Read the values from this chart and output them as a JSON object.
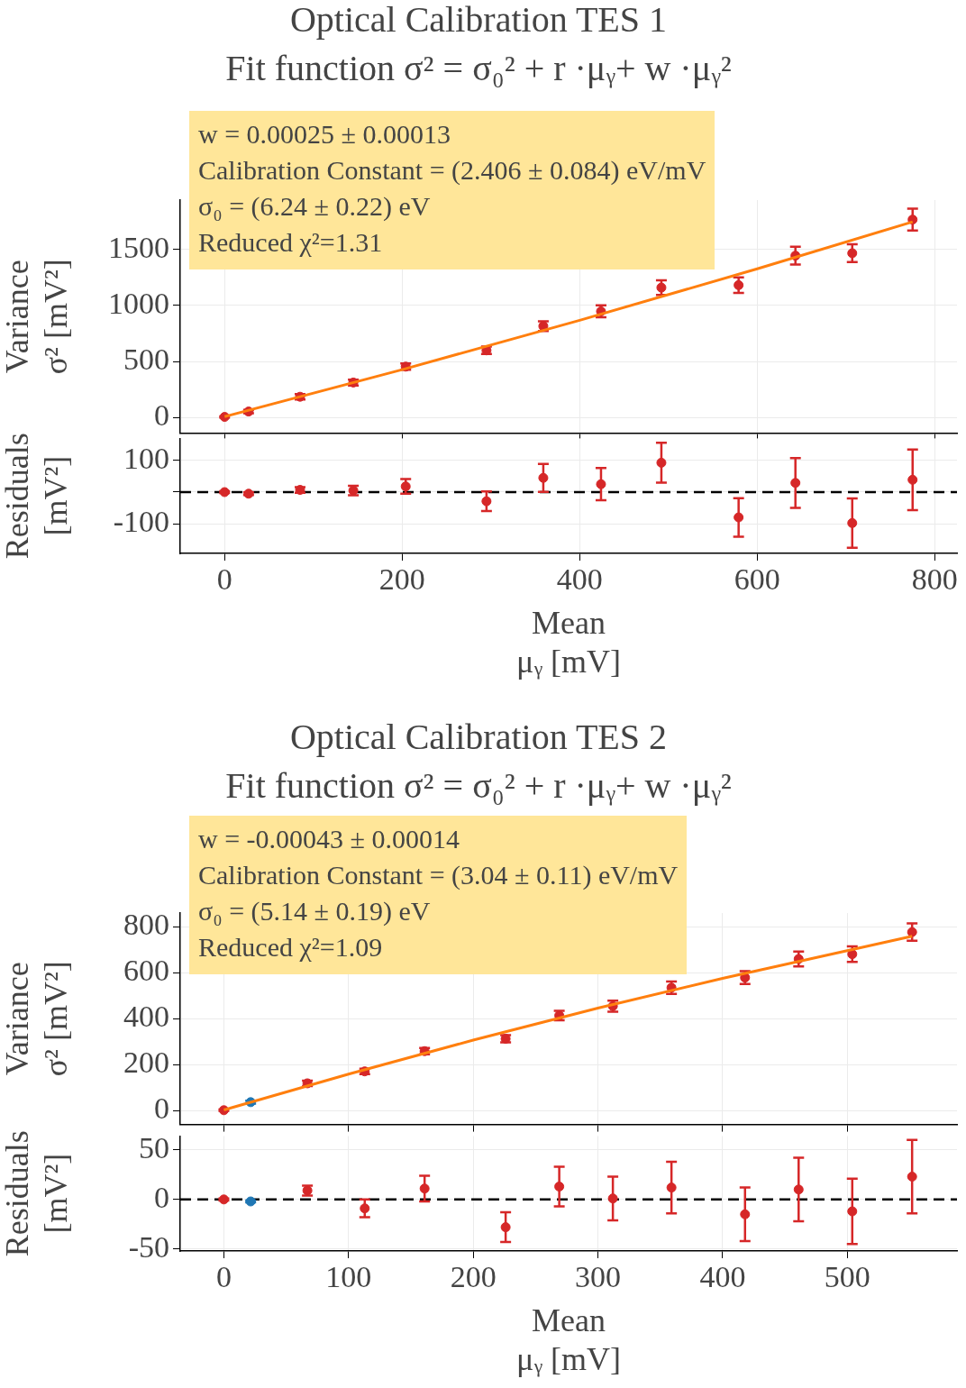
{
  "chart_data": [
    {
      "type": "scatter",
      "title": "Optical Calibration TES 1",
      "subtitle": "Fit function σ² = σ₀² + r ·μᵧ+ w ·μᵧ²",
      "ylabel": "Variance\nσ² [mV²]",
      "annotations": [
        "w = 0.00025 ± 0.00013",
        "Calibration Constant = (2.406 ± 0.084) eV/mV",
        "σ₀ = (6.24 ± 0.22) eV",
        "Reduced χ²=1.31"
      ],
      "xlim": [
        -50,
        825
      ],
      "xticks": [
        0,
        200,
        400,
        600,
        800
      ],
      "ylim": [
        -140,
        1940
      ],
      "yticks": [
        0,
        500,
        1000,
        1500
      ],
      "grid": true,
      "tick_labels": "y",
      "marker": "circle",
      "series": [
        {
          "type": "scatter",
          "color": "#d62728",
          "x": [
            0,
            27,
            85,
            145,
            204,
            295,
            359,
            424,
            492,
            579,
            643,
            707,
            775
          ],
          "values": [
            5,
            53,
            185,
            312,
            454,
            599,
            815,
            947,
            1159,
            1181,
            1444,
            1466,
            1766
          ],
          "errors": [
            5,
            15,
            24,
            26,
            29,
            33,
            44,
            53,
            66,
            70,
            79,
            79,
            97
          ]
        },
        {
          "type": "line",
          "color": "#ff7f0e",
          "marker": "none",
          "x": [
            0,
            200,
            400,
            600,
            775
          ],
          "values": [
            7,
            427,
            867,
            1327,
            1746
          ]
        }
      ]
    },
    {
      "type": "scatter",
      "xlabel": "Mean\nμᵧ [mV]",
      "ylabel": "Residuals\n[mV²]",
      "xlim": [
        -50,
        825
      ],
      "xticks": [
        0,
        200,
        400,
        600,
        800
      ],
      "ylim": [
        -194,
        170
      ],
      "yticks": [
        -100,
        {
          "value": 0,
          "label": null
        },
        100
      ],
      "grid": true,
      "marker": "circle",
      "ref_lines": [
        {
          "axis": "y",
          "value": 0,
          "color": "#000000",
          "line_style": "dashed"
        }
      ],
      "series": [
        {
          "type": "scatter",
          "color": "#d62728",
          "x": [
            0,
            27,
            85,
            145,
            204,
            295,
            359,
            424,
            492,
            579,
            643,
            707,
            775
          ],
          "values": [
            0,
            -5,
            7,
            5,
            18,
            -29,
            45,
            25,
            93,
            -80,
            29,
            -98,
            39
          ],
          "errors": [
            3,
            4,
            9,
            15,
            23,
            31,
            44,
            51,
            63,
            61,
            79,
            78,
            96
          ]
        }
      ]
    },
    {
      "type": "scatter",
      "title": "Optical Calibration TES 2",
      "subtitle": "Fit function σ² = σ₀² + r ·μᵧ+ w ·μᵧ²",
      "ylabel": "Variance\nσ² [mV²]",
      "annotations": [
        "w = -0.00043 ± 0.00014",
        "Calibration Constant = (3.04 ± 0.11) eV/mV",
        "σ₀ = (5.14 ± 0.19) eV",
        "Reduced χ²=1.09"
      ],
      "xlim": [
        -35,
        588
      ],
      "xticks": [
        0,
        100,
        200,
        300,
        400,
        500
      ],
      "ylim": [
        -60,
        860
      ],
      "yticks": [
        0,
        200,
        400,
        600,
        800
      ],
      "grid": true,
      "tick_labels": "y",
      "marker": "circle",
      "series": [
        {
          "type": "scatter",
          "color": "#d62728",
          "x": [
            0,
            67,
            113,
            161,
            226,
            269,
            312,
            359,
            418,
            461,
            504,
            552
          ],
          "values": [
            2,
            119,
            171,
            259,
            313,
            414,
            455,
            535,
            579,
            660,
            681,
            777
          ],
          "errors": [
            3,
            12,
            12,
            14,
            16,
            21,
            24,
            27,
            28,
            32,
            34,
            38
          ]
        },
        {
          "type": "scatter",
          "color": "#1f77b4",
          "x": [
            21.5
          ],
          "values": [
            37
          ],
          "errors": [
            6
          ]
        },
        {
          "type": "line",
          "color": "#ff7f0e",
          "marker": "none",
          "x": [
            0,
            100,
            200,
            300,
            400,
            552
          ],
          "values": [
            3,
            159,
            307,
            446,
            576,
            759
          ]
        }
      ]
    },
    {
      "type": "scatter",
      "xlabel": "Mean\nμᵧ [mV]",
      "ylabel": "Residuals\n[mV²]",
      "xlim": [
        -35,
        588
      ],
      "xticks": [
        0,
        100,
        200,
        300,
        400,
        500
      ],
      "ylim": [
        -52,
        64
      ],
      "yticks": [
        -50,
        0,
        50
      ],
      "grid": true,
      "marker": "circle",
      "ref_lines": [
        {
          "axis": "y",
          "value": 0,
          "color": "#000000",
          "line_style": "dashed"
        }
      ],
      "series": [
        {
          "type": "scatter",
          "color": "#d62728",
          "x": [
            0,
            67,
            113,
            161,
            226,
            269,
            312,
            359,
            418,
            461,
            504,
            552
          ],
          "values": [
            0,
            9,
            -9,
            11,
            -28,
            13,
            1,
            12,
            -15,
            10,
            -12,
            23
          ],
          "errors": [
            1,
            5,
            9,
            13,
            15,
            20,
            22,
            26,
            27,
            32,
            33,
            37
          ]
        },
        {
          "type": "scatter",
          "color": "#1f77b4",
          "x": [
            21.5
          ],
          "values": [
            -2
          ],
          "errors": [
            1
          ]
        }
      ]
    }
  ]
}
